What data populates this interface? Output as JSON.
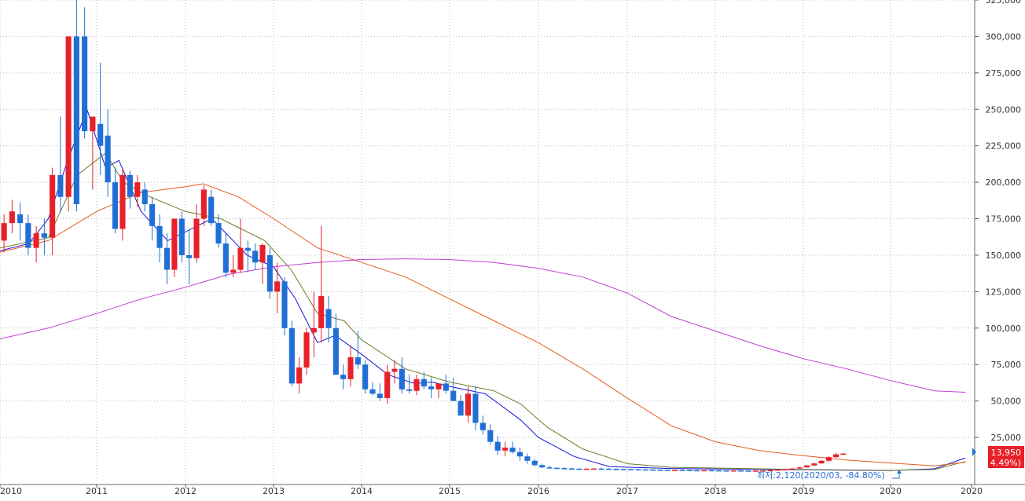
{
  "chart_data": {
    "type": "candlestick",
    "timeframe": "monthly",
    "x_range": [
      "2009-12",
      "2020-12"
    ],
    "ylim": [
      0,
      325000
    ],
    "y_tick_labels": [
      "25,000",
      "50,000",
      "75,000",
      "100,000",
      "125,000",
      "150,000",
      "175,000",
      "200,000",
      "225,000",
      "250,000",
      "275,000",
      "300,000",
      "325,000"
    ],
    "x_tick_labels": [
      "2010",
      "2011",
      "2012",
      "2013",
      "2014",
      "2015",
      "2016",
      "2017",
      "2018",
      "2019",
      "2020",
      "2020"
    ],
    "grid": "dotted",
    "colors": {
      "up": "#e8202a",
      "down": "#1f6fd6",
      "ma_short": "#1414d8",
      "ma_mid": "#6e7a2a",
      "ma_long": "#e65a1e",
      "ma_xlong": "#c43cd8",
      "price_label_bg": "#e8202a"
    },
    "current_price_label": "13,950",
    "change_label": "( 4.49%)",
    "min_annotation": "최저:2,120(2020/03, -84.80%)",
    "candles": [
      [
        165000,
        175000,
        150000,
        160000
      ],
      [
        160000,
        178000,
        152000,
        172000
      ],
      [
        172000,
        188000,
        165000,
        180000
      ],
      [
        178000,
        186000,
        160000,
        172000
      ],
      [
        172000,
        178000,
        150000,
        155000
      ],
      [
        155000,
        170000,
        145000,
        165000
      ],
      [
        165000,
        175000,
        150000,
        162000
      ],
      [
        162000,
        210000,
        150000,
        205000
      ],
      [
        205000,
        245000,
        180000,
        190000
      ],
      [
        190000,
        300000,
        180000,
        300000
      ],
      [
        300000,
        330000,
        180000,
        185000
      ],
      [
        300000,
        320000,
        230000,
        235000
      ],
      [
        235000,
        245000,
        195000,
        245000
      ],
      [
        240000,
        282000,
        205000,
        225000
      ],
      [
        232000,
        250000,
        190000,
        200000
      ],
      [
        200000,
        210000,
        165000,
        168000
      ],
      [
        168000,
        210000,
        160000,
        205000
      ],
      [
        205000,
        208000,
        182000,
        190000
      ],
      [
        190000,
        205000,
        183000,
        200000
      ],
      [
        195000,
        200000,
        180000,
        185000
      ],
      [
        185000,
        190000,
        160000,
        170000
      ],
      [
        170000,
        178000,
        145000,
        155000
      ],
      [
        155000,
        165000,
        130000,
        140000
      ],
      [
        140000,
        175000,
        135000,
        175000
      ],
      [
        175000,
        180000,
        145000,
        150000
      ],
      [
        150000,
        168000,
        130000,
        148000
      ],
      [
        148000,
        185000,
        145000,
        175000
      ],
      [
        175000,
        198000,
        170000,
        195000
      ],
      [
        190000,
        195000,
        170000,
        172000
      ],
      [
        172000,
        178000,
        155000,
        158000
      ],
      [
        158000,
        165000,
        135000,
        138000
      ],
      [
        138000,
        150000,
        135000,
        140000
      ],
      [
        140000,
        175000,
        138000,
        155000
      ],
      [
        155000,
        160000,
        138000,
        153000
      ],
      [
        153000,
        158000,
        140000,
        145000
      ],
      [
        145000,
        158000,
        130000,
        157000
      ],
      [
        150000,
        155000,
        120000,
        125000
      ],
      [
        125000,
        145000,
        110000,
        132000
      ],
      [
        132000,
        135000,
        95000,
        100000
      ],
      [
        100000,
        105000,
        60000,
        62000
      ],
      [
        62000,
        80000,
        55000,
        73000
      ],
      [
        73000,
        100000,
        68000,
        97000
      ],
      [
        97000,
        125000,
        80000,
        100000
      ],
      [
        100000,
        170000,
        90000,
        122000
      ],
      [
        113000,
        122000,
        90000,
        100000
      ],
      [
        100000,
        110000,
        70000,
        68000
      ],
      [
        68000,
        75000,
        58000,
        65000
      ],
      [
        65000,
        88000,
        60000,
        80000
      ],
      [
        80000,
        98000,
        72000,
        75000
      ],
      [
        75000,
        78000,
        55000,
        58000
      ],
      [
        58000,
        63000,
        54000,
        55000
      ],
      [
        55000,
        62000,
        50000,
        52000
      ],
      [
        52000,
        75000,
        48000,
        70000
      ],
      [
        70000,
        78000,
        62000,
        72000
      ],
      [
        72000,
        80000,
        55000,
        58000
      ],
      [
        58000,
        68000,
        55000,
        57000
      ],
      [
        57000,
        68000,
        54000,
        65000
      ],
      [
        65000,
        70000,
        58000,
        60000
      ],
      [
        60000,
        66000,
        52000,
        58000
      ],
      [
        58000,
        62000,
        52000,
        62000
      ],
      [
        62000,
        68000,
        55000,
        57000
      ],
      [
        57000,
        66000,
        52000,
        50000
      ],
      [
        50000,
        54000,
        40000,
        40000
      ],
      [
        40000,
        60000,
        35000,
        55000
      ],
      [
        55000,
        60000,
        30000,
        35000
      ],
      [
        35000,
        40000,
        27000,
        30000
      ],
      [
        30000,
        34000,
        20000,
        22000
      ],
      [
        22000,
        26000,
        13000,
        16000
      ],
      [
        16000,
        22000,
        12000,
        18000
      ],
      [
        18000,
        22000,
        14000,
        15000
      ],
      [
        15000,
        18000,
        9000,
        12000
      ],
      [
        12000,
        14000,
        7000,
        9000
      ],
      [
        9000,
        10000,
        5000,
        6000
      ],
      [
        6000,
        7000,
        4000,
        4500
      ],
      [
        4500,
        5500,
        3500,
        4200
      ],
      [
        4200,
        4500,
        3500,
        4000
      ],
      [
        4000,
        4500,
        3500,
        3800
      ],
      [
        3800,
        4200,
        3200,
        3600
      ],
      [
        3600,
        4000,
        3200,
        3500
      ],
      [
        3500,
        3800,
        3200,
        3600
      ],
      [
        3600,
        4000,
        3300,
        3700
      ],
      [
        3700,
        4200,
        3400,
        3600
      ],
      [
        3600,
        3900,
        3300,
        3500
      ],
      [
        3500,
        3800,
        3200,
        3400
      ],
      [
        3400,
        3600,
        3100,
        3300
      ],
      [
        3300,
        3500,
        3000,
        3200
      ],
      [
        3200,
        3400,
        2900,
        3100
      ],
      [
        3100,
        3300,
        2800,
        3000
      ],
      [
        3000,
        3200,
        2700,
        2900
      ],
      [
        2900,
        3100,
        2600,
        2800
      ],
      [
        2800,
        3000,
        2600,
        2700
      ],
      [
        2700,
        2900,
        2500,
        2800
      ],
      [
        2800,
        3000,
        2600,
        2700
      ],
      [
        2700,
        2900,
        2500,
        2600
      ],
      [
        2600,
        2800,
        2400,
        2500
      ],
      [
        2500,
        2700,
        2300,
        2600
      ],
      [
        2600,
        2800,
        2400,
        2500
      ],
      [
        2500,
        2700,
        2300,
        2400
      ],
      [
        2400,
        2600,
        2200,
        2300
      ],
      [
        2300,
        2500,
        2200,
        2400
      ],
      [
        2400,
        2600,
        2200,
        2300
      ],
      [
        2300,
        2500,
        2150,
        2200
      ],
      [
        2200,
        2400,
        2120,
        2300
      ],
      [
        2300,
        2500,
        2200,
        2400
      ],
      [
        2400,
        2700,
        2300,
        2600
      ],
      [
        2600,
        3100,
        2500,
        3000
      ],
      [
        3000,
        3500,
        2800,
        3300
      ],
      [
        3300,
        3900,
        3100,
        3700
      ],
      [
        3700,
        4800,
        3500,
        4500
      ],
      [
        4500,
        6000,
        4200,
        5800
      ],
      [
        5800,
        7500,
        5500,
        7200
      ],
      [
        7200,
        9500,
        7000,
        9000
      ],
      [
        9000,
        12000,
        8500,
        11500
      ],
      [
        11500,
        14500,
        11000,
        13400
      ],
      [
        13400,
        14500,
        13200,
        13950
      ]
    ],
    "ma_lines": {
      "ma_short": [
        [
          2010.0,
          153000
        ],
        [
          2010.3,
          158000
        ],
        [
          2010.5,
          175000
        ],
        [
          2010.7,
          215000
        ],
        [
          2010.9,
          250000
        ],
        [
          2011.1,
          210000
        ],
        [
          2011.25,
          215000
        ],
        [
          2011.5,
          180000
        ],
        [
          2011.8,
          160000
        ],
        [
          2012.3,
          175000
        ],
        [
          2012.7,
          150000
        ],
        [
          2013.0,
          142000
        ],
        [
          2013.25,
          120000
        ],
        [
          2013.5,
          90000
        ],
        [
          2013.7,
          95000
        ],
        [
          2014.0,
          82000
        ],
        [
          2014.3,
          68000
        ],
        [
          2014.6,
          62000
        ],
        [
          2014.8,
          63000
        ],
        [
          2015.0,
          60000
        ],
        [
          2015.4,
          55000
        ],
        [
          2015.8,
          37000
        ],
        [
          2016.0,
          25000
        ],
        [
          2016.4,
          12000
        ],
        [
          2016.8,
          5000
        ],
        [
          2017.5,
          3700
        ],
        [
          2019.0,
          2800
        ],
        [
          2020.0,
          2300
        ],
        [
          2020.5,
          3500
        ],
        [
          2020.85,
          11000
        ]
      ],
      "ma_mid": [
        [
          2010.0,
          155000
        ],
        [
          2010.5,
          162000
        ],
        [
          2010.8,
          205000
        ],
        [
          2011.1,
          220000
        ],
        [
          2011.3,
          200000
        ],
        [
          2011.6,
          190000
        ],
        [
          2012.0,
          180000
        ],
        [
          2012.4,
          175000
        ],
        [
          2012.9,
          160000
        ],
        [
          2013.2,
          140000
        ],
        [
          2013.5,
          110000
        ],
        [
          2013.8,
          105000
        ],
        [
          2014.0,
          92000
        ],
        [
          2014.5,
          72000
        ],
        [
          2015.0,
          63000
        ],
        [
          2015.5,
          57000
        ],
        [
          2015.8,
          48000
        ],
        [
          2016.1,
          32000
        ],
        [
          2016.5,
          17000
        ],
        [
          2017.0,
          7000
        ],
        [
          2017.5,
          4500
        ],
        [
          2019.0,
          3000
        ],
        [
          2020.0,
          2400
        ],
        [
          2020.5,
          3000
        ],
        [
          2020.85,
          8500
        ]
      ],
      "ma_long": [
        [
          2010.0,
          152000
        ],
        [
          2010.5,
          160000
        ],
        [
          2011.0,
          180000
        ],
        [
          2011.5,
          193000
        ],
        [
          2012.0,
          197000
        ],
        [
          2012.2,
          199000
        ],
        [
          2012.6,
          190000
        ],
        [
          2013.0,
          175000
        ],
        [
          2013.5,
          155000
        ],
        [
          2014.0,
          145000
        ],
        [
          2014.5,
          135000
        ],
        [
          2015.0,
          120000
        ],
        [
          2015.5,
          105000
        ],
        [
          2016.0,
          90000
        ],
        [
          2016.5,
          72000
        ],
        [
          2017.0,
          52000
        ],
        [
          2017.5,
          33000
        ],
        [
          2018.0,
          22000
        ],
        [
          2018.5,
          16000
        ],
        [
          2019.0,
          12500
        ],
        [
          2019.5,
          9500
        ],
        [
          2020.0,
          7500
        ],
        [
          2020.5,
          5500
        ],
        [
          2020.85,
          8000
        ]
      ],
      "ma_xlong": [
        [
          2009.95,
          92000
        ],
        [
          2010.5,
          100000
        ],
        [
          2011.0,
          110000
        ],
        [
          2011.5,
          120000
        ],
        [
          2012.0,
          128000
        ],
        [
          2012.5,
          137000
        ],
        [
          2013.0,
          142000
        ],
        [
          2013.5,
          145000
        ],
        [
          2014.0,
          147000
        ],
        [
          2014.5,
          147500
        ],
        [
          2015.0,
          147000
        ],
        [
          2015.5,
          145000
        ],
        [
          2016.0,
          141000
        ],
        [
          2016.5,
          135000
        ],
        [
          2017.0,
          124000
        ],
        [
          2017.5,
          108000
        ],
        [
          2018.0,
          98000
        ],
        [
          2018.5,
          88000
        ],
        [
          2019.0,
          79000
        ],
        [
          2019.5,
          72000
        ],
        [
          2020.0,
          64000
        ],
        [
          2020.5,
          57000
        ],
        [
          2020.85,
          56000
        ]
      ]
    }
  }
}
